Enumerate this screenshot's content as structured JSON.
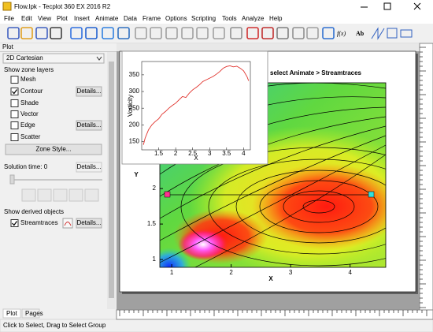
{
  "window": {
    "title": "Flow.lpk - Tecplot 360 EX 2016 R2"
  },
  "menu": [
    "File",
    "Edit",
    "View",
    "Plot",
    "Insert",
    "Animate",
    "Data",
    "Frame",
    "Options",
    "Scripting",
    "Tools",
    "Analyze",
    "Help"
  ],
  "toolbar": {
    "equation_tool": "f(x)",
    "text_tool": "Ab"
  },
  "sidebar": {
    "title": "Plot",
    "plot_type": "2D Cartesian",
    "zone_layers_heading": "Show zone layers",
    "layers": [
      {
        "label": "Mesh",
        "checked": false
      },
      {
        "label": "Contour",
        "checked": true,
        "button": "Details..."
      },
      {
        "label": "Shade",
        "checked": false
      },
      {
        "label": "Vector",
        "checked": false
      },
      {
        "label": "Edge",
        "checked": false,
        "button": "Details..."
      },
      {
        "label": "Scatter",
        "checked": false
      }
    ],
    "zone_style_button": "Zone Style...",
    "solution_time": "Solution time: 0",
    "solution_details": "Details...",
    "derived_heading": "Show derived objects",
    "derived": [
      {
        "label": "Streamtraces",
        "checked": true,
        "button": "Details..."
      }
    ],
    "tabs": [
      "Plot",
      "Pages"
    ]
  },
  "status_bar": "Click to Select, Drag to Select Group",
  "main_plot": {
    "frame_title": "select Animate > Streamtraces",
    "xlabel": "X",
    "ylabel": "Y",
    "xlim": [
      0.8,
      4.6
    ],
    "ylim": [
      0.89,
      3.49
    ],
    "xticks": [
      1,
      2,
      3,
      4
    ],
    "yticks": [
      1,
      1.5,
      2
    ]
  },
  "inset_plot": {
    "type": "line",
    "xlabel": "X",
    "ylabel": "Vorticity",
    "color": "#e0302a",
    "xlim": [
      1,
      4.2
    ],
    "ylim": [
      125,
      390
    ],
    "xticks": [
      1.5,
      2,
      2.5,
      3,
      3.5,
      4
    ],
    "yticks": [
      150,
      200,
      250,
      300,
      350
    ],
    "x": [
      1.05,
      1.1,
      1.2,
      1.3,
      1.4,
      1.5,
      1.6,
      1.7,
      1.8,
      1.9,
      2.0,
      2.1,
      2.2,
      2.3,
      2.4,
      2.5,
      2.6,
      2.7,
      2.8,
      2.9,
      3.0,
      3.1,
      3.2,
      3.3,
      3.4,
      3.5,
      3.6,
      3.7,
      3.8,
      3.9,
      4.0,
      4.1,
      4.15
    ],
    "values": [
      140,
      160,
      185,
      200,
      210,
      218,
      232,
      240,
      250,
      258,
      265,
      275,
      285,
      282,
      295,
      305,
      312,
      320,
      330,
      335,
      340,
      345,
      352,
      360,
      370,
      375,
      377,
      374,
      376,
      370,
      362,
      345,
      332
    ]
  }
}
